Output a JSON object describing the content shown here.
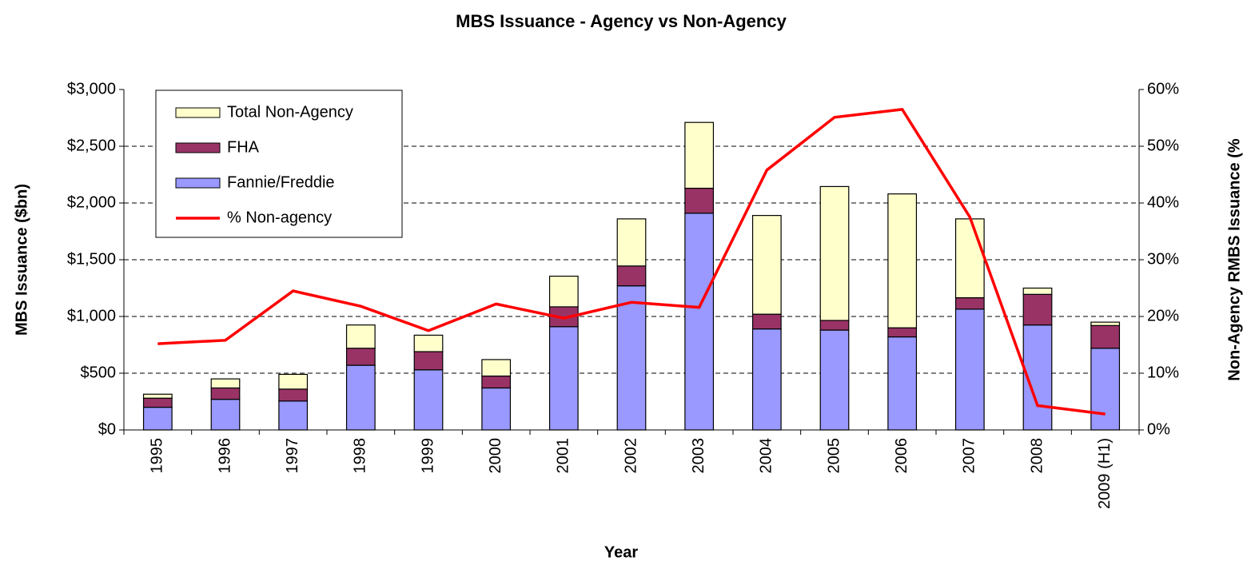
{
  "chart_data": {
    "type": "bar",
    "title": "MBS Issuance - Agency vs Non-Agency",
    "x_label": "Year",
    "y_label": "MBS Issuance ($bn)",
    "y2_label": "Non-Agency RMBS Issuance (%",
    "categories": [
      "1995",
      "1996",
      "1997",
      "1998",
      "1999",
      "2000",
      "2001",
      "2002",
      "2003",
      "2004",
      "2005",
      "2006",
      "2007",
      "2008",
      "2009 (H1)"
    ],
    "stacked": true,
    "series": [
      {
        "name": "Fannie/Freddie",
        "color": "#9999ff",
        "values": [
          200,
          270,
          255,
          570,
          530,
          370,
          910,
          1270,
          1910,
          890,
          880,
          820,
          1065,
          925,
          720
        ]
      },
      {
        "name": "FHA",
        "color": "#993366",
        "values": [
          80,
          100,
          105,
          150,
          160,
          105,
          175,
          175,
          220,
          130,
          85,
          80,
          100,
          270,
          200
        ]
      },
      {
        "name": "Total Non-Agency",
        "color": "#ffffcc",
        "values": [
          35,
          80,
          130,
          205,
          145,
          145,
          270,
          415,
          580,
          870,
          1180,
          1180,
          695,
          55,
          30
        ]
      },
      {
        "name": "% Non-agency",
        "color": "#ff0000",
        "type": "line",
        "axis": "y2",
        "values": [
          15.2,
          15.8,
          24.5,
          21.8,
          17.5,
          22.2,
          19.7,
          22.5,
          21.6,
          45.8,
          55.1,
          56.5,
          37.5,
          4.3,
          2.8
        ]
      }
    ],
    "ylim": [
      0,
      3000
    ],
    "yticks": [
      {
        "value": 0,
        "label": "$0"
      },
      {
        "value": 500,
        "label": "$500"
      },
      {
        "value": 1000,
        "label": "$1,000"
      },
      {
        "value": 1500,
        "label": "$1,500"
      },
      {
        "value": 2000,
        "label": "$2,000"
      },
      {
        "value": 2500,
        "label": "$2,500"
      },
      {
        "value": 3000,
        "label": "$3,000"
      }
    ],
    "y2lim": [
      0,
      60
    ],
    "y2ticks": [
      {
        "value": 0,
        "label": "0%"
      },
      {
        "value": 10,
        "label": "10%"
      },
      {
        "value": 20,
        "label": "20%"
      },
      {
        "value": 30,
        "label": "30%"
      },
      {
        "value": 40,
        "label": "40%"
      },
      {
        "value": 50,
        "label": "50%"
      },
      {
        "value": 60,
        "label": "60%"
      }
    ],
    "grid": true,
    "legend": "upper left"
  }
}
